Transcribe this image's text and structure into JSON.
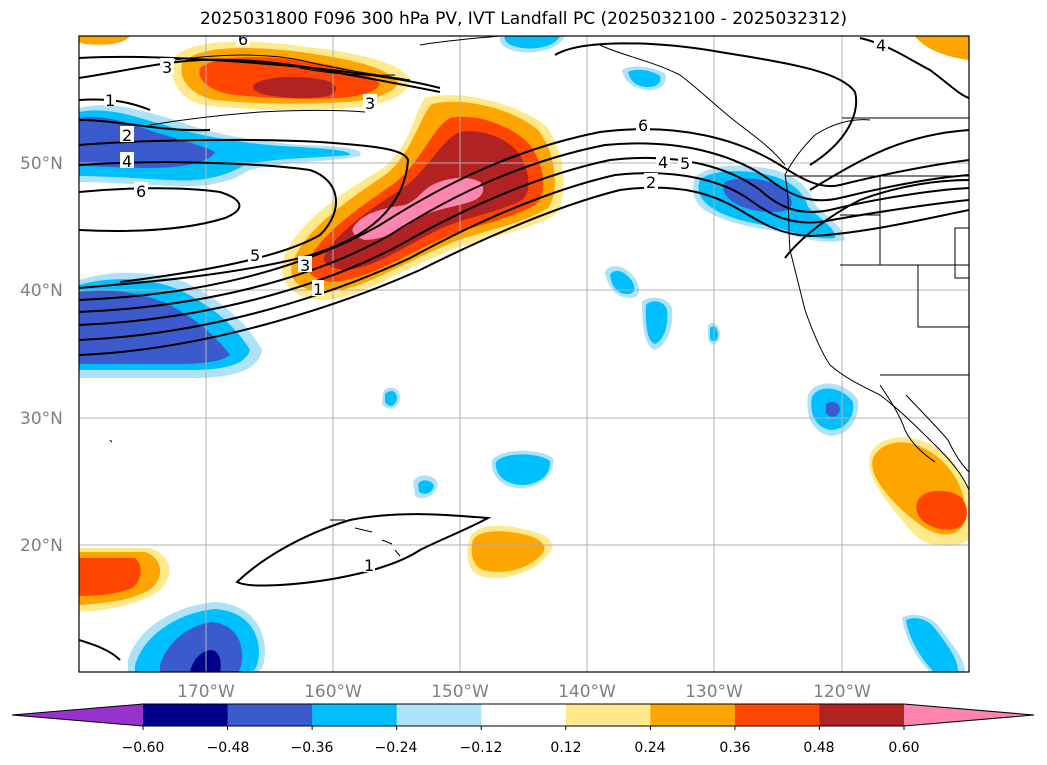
{
  "title": "2025031800 F096 300 hPa PV, IVT Landfall PC (2025032100 - 2025032312)",
  "map": {
    "lat_labels": [
      "50°N",
      "40°N",
      "30°N",
      "20°N"
    ],
    "lon_labels": [
      "170°W",
      "160°W",
      "150°W",
      "140°W",
      "130°W",
      "120°W"
    ],
    "contour_labels": [
      "6",
      "3",
      "3",
      "1",
      "2",
      "4",
      "6",
      "5",
      "3",
      "1",
      "6",
      "4",
      "5",
      "2",
      "4",
      "1"
    ]
  },
  "colorbar": {
    "ticks": [
      "−0.60",
      "−0.48",
      "−0.36",
      "−0.24",
      "−0.12",
      "0.12",
      "0.24",
      "0.36",
      "0.48",
      "0.60"
    ],
    "colors": [
      "#9932cc",
      "#00008b",
      "#3b5bcc",
      "#00bfff",
      "#aee2f9",
      "#ffffff",
      "#ffe98a",
      "#ffa500",
      "#ff4500",
      "#b22222",
      "#ff85b0"
    ]
  },
  "colors": {
    "neg_strong": "#3b5bcc",
    "neg_mid": "#00bfff",
    "neg_light": "#aee2f9",
    "neg_darkest": "#00008b",
    "pos_light": "#ffe98a",
    "pos_mid": "#ffa500",
    "pos_strong": "#ff4500",
    "pos_stronger": "#b22222",
    "pos_max": "#ff85b0"
  }
}
